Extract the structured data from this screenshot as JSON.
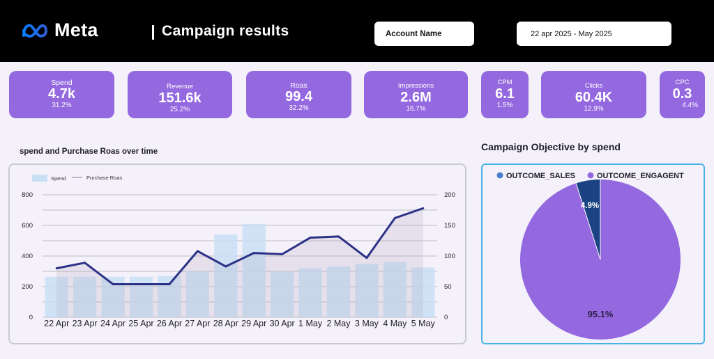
{
  "header": {
    "brand": "Meta",
    "title": "Campaign  results",
    "account_label": "Account Name",
    "date_range": "22 apr 2025 - May 2025"
  },
  "kpis": [
    {
      "label": "Spend",
      "value": "4.7k",
      "change": "31.2%"
    },
    {
      "label": "Revenue",
      "value": "151.6k",
      "change": "25.2%"
    },
    {
      "label": "Roas",
      "value": "99.4",
      "change": "32.2%"
    },
    {
      "label": "Impressions",
      "value": "2.6M",
      "change": "16.7%"
    },
    {
      "label": "CPM",
      "value": "6.1",
      "change": "1.5%"
    },
    {
      "label": "Clicks",
      "value": "60.4K",
      "change": "12.9%"
    },
    {
      "label": "CPC",
      "value": "0.3",
      "change": "4.4%"
    }
  ],
  "colors": {
    "accent": "#9469e0",
    "bar": "#c8dff4",
    "line": "#2b3185",
    "pie_sales": "#4a7ec9",
    "pie_engagement": "#9469e0",
    "pie_small": "#1b4283",
    "pie_border": "#4ab3e6"
  },
  "chart_data": [
    {
      "type": "bar",
      "title": "spend and  Purchase Roas  over time",
      "categories": [
        "22 Apr",
        "23 Apr",
        "24 Apr",
        "25 Apr",
        "26 Apr",
        "27 Apr",
        "28 Apr",
        "29 Apr",
        "30 Apr",
        "1 May",
        "2 May",
        "3 May",
        "4 May",
        "5 May"
      ],
      "series": [
        {
          "name": "Spend",
          "type": "bar",
          "axis": "left",
          "values": [
            265,
            265,
            265,
            265,
            270,
            300,
            540,
            610,
            300,
            320,
            330,
            350,
            360,
            325
          ]
        },
        {
          "name": "Purchase Roas",
          "type": "line",
          "axis": "right",
          "values": [
            80,
            89,
            54,
            54,
            54,
            108,
            83,
            105,
            103,
            130,
            132,
            97,
            162,
            178
          ]
        }
      ],
      "left_axis": {
        "ticks": [
          "0",
          "200",
          "400",
          "600",
          "800"
        ],
        "ylim": [
          0,
          800
        ]
      },
      "right_axis": {
        "ticks": [
          "0",
          "50",
          "100",
          "150",
          "200"
        ],
        "ylim": [
          0,
          200
        ]
      },
      "legend": "top-left",
      "grid": true
    },
    {
      "type": "pie",
      "title": "Campaign Objective by spend",
      "slices": [
        {
          "name": "OUTCOME_ENGAGENT",
          "value": 95.1,
          "label": "95.1%"
        },
        {
          "name": "OUTCOME_SALES",
          "value": 4.9,
          "label": "4.9%"
        }
      ],
      "legend": "top"
    }
  ]
}
